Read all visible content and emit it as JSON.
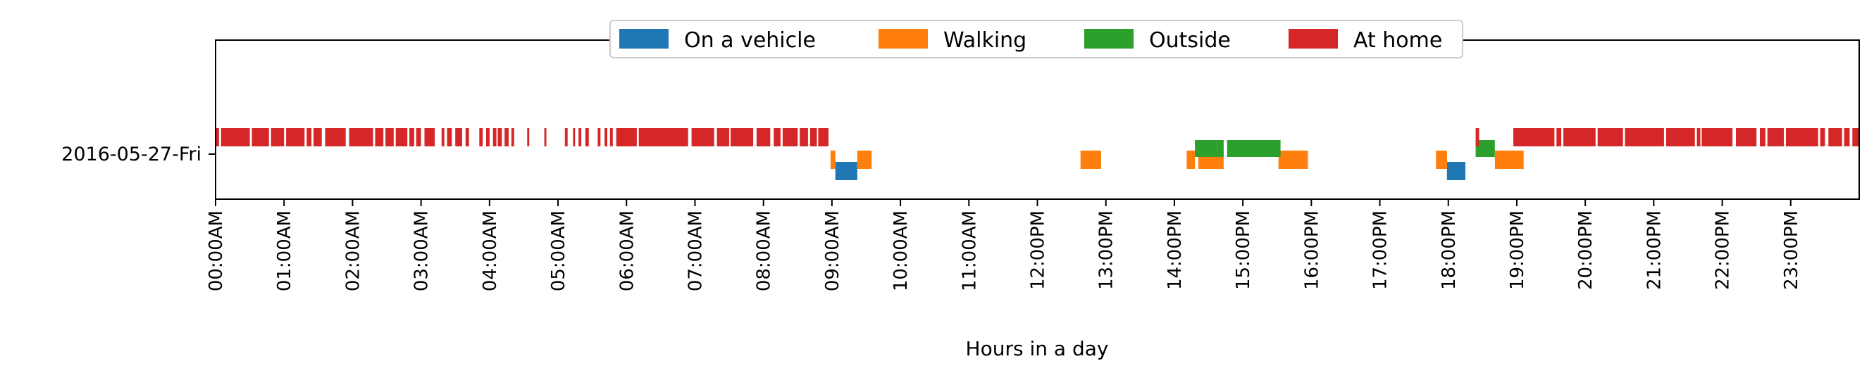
{
  "chart_data": {
    "type": "timeline",
    "xlabel": "Hours in a day",
    "xlim": [
      0,
      24
    ],
    "category": "2016-05-27-Fri",
    "x_ticks": [
      "00:00AM",
      "01:00AM",
      "02:00AM",
      "03:00AM",
      "04:00AM",
      "05:00AM",
      "06:00AM",
      "07:00AM",
      "08:00AM",
      "09:00AM",
      "10:00AM",
      "11:00AM",
      "12:00PM",
      "13:00PM",
      "14:00PM",
      "15:00PM",
      "16:00PM",
      "17:00PM",
      "18:00PM",
      "19:00PM",
      "20:00PM",
      "21:00PM",
      "22:00PM",
      "23:00PM"
    ],
    "legend_placement": "upper center",
    "series": [
      {
        "name": "On a vehicle",
        "color": "#1f77b4",
        "lane": "bottom",
        "intervals": [
          [
            9.05,
            9.37
          ],
          [
            17.98,
            18.25
          ]
        ]
      },
      {
        "name": "Walking",
        "color": "#ff7f0e",
        "lane": "low",
        "intervals": [
          [
            8.98,
            9.05
          ],
          [
            9.37,
            9.58
          ],
          [
            12.63,
            12.93
          ],
          [
            14.18,
            14.3
          ],
          [
            14.35,
            14.72
          ],
          [
            15.52,
            15.95
          ],
          [
            17.82,
            17.98
          ],
          [
            18.68,
            19.1
          ]
        ]
      },
      {
        "name": "Outside",
        "color": "#2ca02c",
        "lane": "mid",
        "intervals": [
          [
            14.3,
            14.62
          ],
          [
            14.62,
            14.72
          ],
          [
            14.77,
            15.55
          ],
          [
            18.4,
            18.68
          ]
        ]
      },
      {
        "name": "At home",
        "color": "#d62728",
        "lane": "top",
        "intervals": [
          [
            0.0,
            0.05
          ],
          [
            0.08,
            0.5
          ],
          [
            0.53,
            0.78
          ],
          [
            0.81,
            1.0
          ],
          [
            1.03,
            1.3
          ],
          [
            1.33,
            1.4
          ],
          [
            1.43,
            1.55
          ],
          [
            1.6,
            1.9
          ],
          [
            1.95,
            2.3
          ],
          [
            2.33,
            2.45
          ],
          [
            2.48,
            2.6
          ],
          [
            2.63,
            2.8
          ],
          [
            2.83,
            2.9
          ],
          [
            2.93,
            3.0
          ],
          [
            3.05,
            3.2
          ],
          [
            3.3,
            3.34
          ],
          [
            3.38,
            3.45
          ],
          [
            3.5,
            3.6
          ],
          [
            3.65,
            3.7
          ],
          [
            3.85,
            3.9
          ],
          [
            3.95,
            4.0
          ],
          [
            4.05,
            4.1
          ],
          [
            4.12,
            4.18
          ],
          [
            4.22,
            4.28
          ],
          [
            4.32,
            4.36
          ],
          [
            4.55,
            4.58
          ],
          [
            4.8,
            4.83
          ],
          [
            5.1,
            5.14
          ],
          [
            5.22,
            5.25
          ],
          [
            5.3,
            5.34
          ],
          [
            5.4,
            5.45
          ],
          [
            5.58,
            5.62
          ],
          [
            5.68,
            5.72
          ],
          [
            5.76,
            5.8
          ],
          [
            5.85,
            6.15
          ],
          [
            6.18,
            6.9
          ],
          [
            6.95,
            7.28
          ],
          [
            7.32,
            7.5
          ],
          [
            7.52,
            7.85
          ],
          [
            7.9,
            8.1
          ],
          [
            8.15,
            8.25
          ],
          [
            8.28,
            8.5
          ],
          [
            8.53,
            8.65
          ],
          [
            8.68,
            8.78
          ],
          [
            8.8,
            8.95
          ],
          [
            18.4,
            18.45
          ],
          [
            18.95,
            19.55
          ],
          [
            19.58,
            19.65
          ],
          [
            19.68,
            20.15
          ],
          [
            20.18,
            20.55
          ],
          [
            20.58,
            21.15
          ],
          [
            21.18,
            21.6
          ],
          [
            21.63,
            21.68
          ],
          [
            21.7,
            22.15
          ],
          [
            22.2,
            22.5
          ],
          [
            22.55,
            22.63
          ],
          [
            22.66,
            22.9
          ],
          [
            22.93,
            23.4
          ],
          [
            23.43,
            23.5
          ],
          [
            23.55,
            23.75
          ],
          [
            23.78,
            23.86
          ],
          [
            23.9,
            24.0
          ]
        ]
      }
    ]
  }
}
